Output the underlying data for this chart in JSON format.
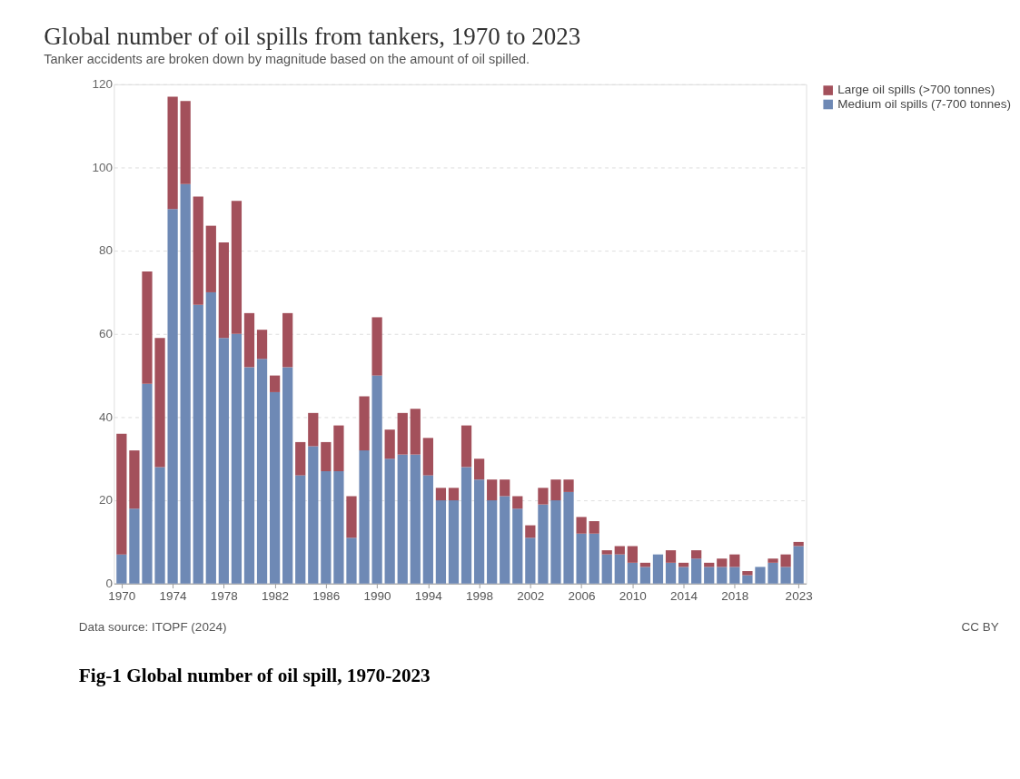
{
  "chart_data": {
    "type": "bar",
    "stacked": true,
    "title": "Global number of oil spills from tankers, 1970 to 2023",
    "subtitle": "Tanker accidents are broken down by magnitude based on the amount of oil spilled.",
    "x": [
      1970,
      1971,
      1972,
      1973,
      1974,
      1975,
      1976,
      1977,
      1978,
      1979,
      1980,
      1981,
      1982,
      1983,
      1984,
      1985,
      1986,
      1987,
      1988,
      1989,
      1990,
      1991,
      1992,
      1993,
      1994,
      1995,
      1996,
      1997,
      1998,
      1999,
      2000,
      2001,
      2002,
      2003,
      2004,
      2005,
      2006,
      2007,
      2008,
      2009,
      2010,
      2011,
      2012,
      2013,
      2014,
      2015,
      2016,
      2017,
      2018,
      2019,
      2020,
      2021,
      2022,
      2023
    ],
    "series": [
      {
        "name": "Medium oil spills (7-700 tonnes)",
        "color": "#6e89b5",
        "values": [
          7,
          18,
          48,
          28,
          90,
          96,
          67,
          70,
          59,
          60,
          52,
          54,
          46,
          52,
          26,
          33,
          27,
          27,
          11,
          32,
          50,
          30,
          31,
          31,
          26,
          20,
          20,
          28,
          25,
          20,
          21,
          18,
          11,
          19,
          20,
          22,
          12,
          12,
          7,
          7,
          5,
          4,
          7,
          5,
          4,
          6,
          4,
          4,
          4,
          2,
          4,
          5,
          4,
          9
        ]
      },
      {
        "name": "Large oil spills (>700 tonnes)",
        "color": "#a3505b",
        "values": [
          29,
          14,
          27,
          31,
          27,
          20,
          26,
          16,
          23,
          32,
          13,
          7,
          4,
          13,
          8,
          8,
          7,
          11,
          10,
          13,
          14,
          7,
          10,
          11,
          9,
          3,
          3,
          10,
          5,
          5,
          4,
          3,
          3,
          4,
          5,
          3,
          4,
          3,
          1,
          2,
          4,
          1,
          0,
          3,
          1,
          2,
          1,
          2,
          3,
          1,
          0,
          1,
          3,
          1
        ]
      }
    ],
    "xlim": [
      1969.4,
      2023.6
    ],
    "xticks": [
      1970,
      1974,
      1978,
      1982,
      1986,
      1990,
      1994,
      1998,
      2002,
      2006,
      2010,
      2014,
      2018,
      2023
    ],
    "ylim": [
      0,
      120
    ],
    "yticks": [
      0,
      20,
      40,
      60,
      80,
      100,
      120
    ],
    "grid": "y",
    "legend": "top right",
    "annotations": [
      "Data source: ITOPF (2024)",
      "CC BY",
      "Fig-1 Global number of oil spill, 1970-2023"
    ]
  }
}
